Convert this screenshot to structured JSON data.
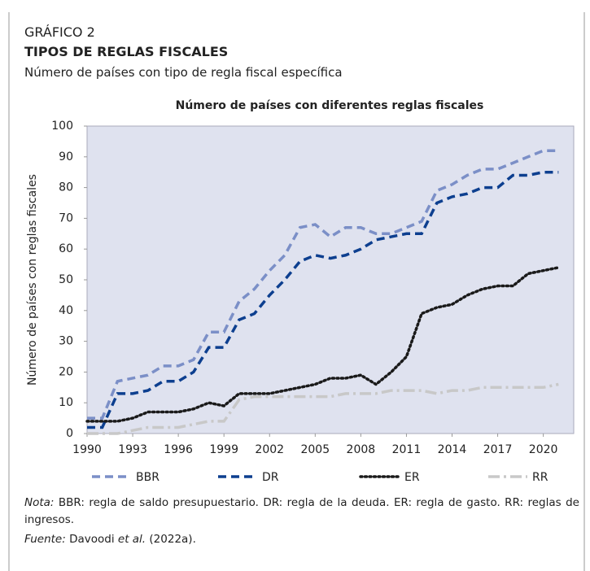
{
  "header": {
    "label": "GRÁFICO 2",
    "title": "TIPOS DE REGLAS FISCALES",
    "subtitle": "Número de países con tipo de regla fiscal específica"
  },
  "chart_data": {
    "type": "line",
    "title": "Número de países con diferentes reglas fiscales",
    "y_label": "Número de países con reglas fiscales",
    "x": [
      1990,
      1991,
      1992,
      1993,
      1994,
      1995,
      1996,
      1997,
      1998,
      1999,
      2000,
      2001,
      2002,
      2003,
      2004,
      2005,
      2006,
      2007,
      2008,
      2009,
      2010,
      2011,
      2012,
      2013,
      2014,
      2015,
      2016,
      2017,
      2018,
      2019,
      2020,
      2021
    ],
    "series": [
      {
        "name": "BBR",
        "color": "#7b8fc7",
        "style": "dashed",
        "values": [
          5,
          5,
          17,
          18,
          19,
          22,
          22,
          24,
          33,
          33,
          43,
          47,
          53,
          58,
          67,
          68,
          64,
          67,
          67,
          65,
          65,
          67,
          69,
          79,
          81,
          84,
          86,
          86,
          88,
          90,
          92,
          92
        ]
      },
      {
        "name": "DR",
        "color": "#0d3f8f",
        "style": "dashed",
        "values": [
          2,
          2,
          13,
          13,
          14,
          17,
          17,
          20,
          28,
          28,
          37,
          39,
          45,
          50,
          56,
          58,
          57,
          58,
          60,
          63,
          64,
          65,
          65,
          75,
          77,
          78,
          80,
          80,
          84,
          84,
          85,
          85
        ]
      },
      {
        "name": "ER",
        "color": "#1a1a1a",
        "style": "dotted",
        "values": [
          4,
          4,
          4,
          5,
          7,
          7,
          7,
          8,
          10,
          9,
          13,
          13,
          13,
          14,
          15,
          16,
          18,
          18,
          19,
          16,
          20,
          25,
          39,
          41,
          42,
          45,
          47,
          48,
          48,
          52,
          53,
          54
        ]
      },
      {
        "name": "RR",
        "color": "#c8c8c8",
        "style": "dashdot",
        "values": [
          0,
          0,
          0,
          1,
          2,
          2,
          2,
          3,
          4,
          4,
          11,
          12,
          12,
          12,
          12,
          12,
          12,
          13,
          13,
          13,
          14,
          14,
          14,
          13,
          14,
          14,
          15,
          15,
          15,
          15,
          15,
          16
        ]
      }
    ],
    "xlim": [
      1990,
      2022
    ],
    "xticks": [
      1990,
      1993,
      1996,
      1999,
      2002,
      2005,
      2008,
      2011,
      2014,
      2017,
      2020
    ],
    "ylim": [
      0,
      100
    ],
    "yticks": [
      0,
      10,
      20,
      30,
      40,
      50,
      60,
      70,
      80,
      90,
      100
    ],
    "grid": false,
    "legend": "bottom"
  },
  "notes": {
    "note_label": "Nota:",
    "note_text": "BBR: regla de saldo presupuestario. DR: regla de la deuda. ER: regla de gasto. RR: reglas de ingresos.",
    "source_label": "Fuente:",
    "source_author": "Davoodi",
    "source_italic": "et al.",
    "source_after": "(2022a)."
  }
}
